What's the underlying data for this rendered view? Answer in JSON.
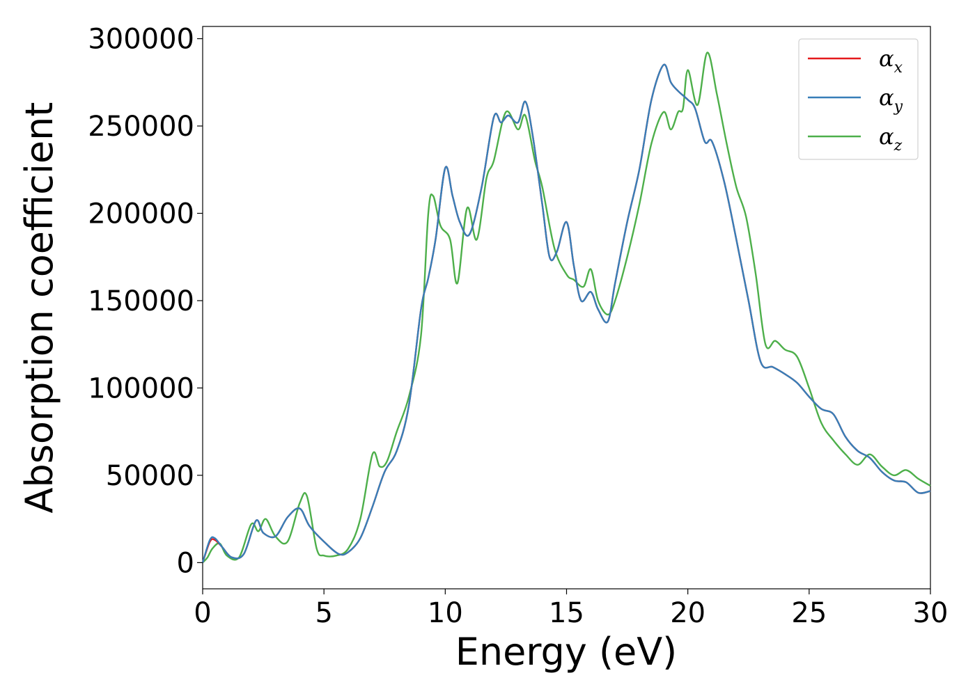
{
  "chart_data": {
    "type": "line",
    "title": "",
    "xlabel": "Energy (eV)",
    "ylabel": "Absorption coefficient",
    "xlim": [
      0,
      30
    ],
    "ylim": [
      -15000,
      307000
    ],
    "xticks": [
      0,
      5,
      10,
      15,
      20,
      25,
      30
    ],
    "xtick_labels": [
      "0",
      "5",
      "10",
      "15",
      "20",
      "25",
      "30"
    ],
    "yticks": [
      0,
      50000,
      100000,
      150000,
      200000,
      250000,
      300000
    ],
    "ytick_labels": [
      "0",
      "50000",
      "100000",
      "150000",
      "200000",
      "250000",
      "300000"
    ],
    "grid": false,
    "legend_position": "top-right",
    "series": [
      {
        "name": "α_x",
        "legend_base": "α",
        "legend_sub": "x",
        "color": "#e41a1c",
        "x": [
          0,
          0.3,
          0.5,
          0.8,
          1.2,
          1.7,
          2.2,
          2.5,
          3.0,
          3.5,
          4.0,
          4.4,
          5.0,
          5.6,
          6.0,
          6.5,
          7.0,
          7.5,
          8.0,
          8.5,
          9.0,
          9.3,
          9.6,
          10.0,
          10.3,
          10.6,
          11.0,
          11.5,
          12.0,
          12.3,
          12.6,
          13.0,
          13.3,
          13.6,
          14.0,
          14.3,
          14.6,
          15.0,
          15.3,
          15.6,
          16.0,
          16.3,
          16.7,
          17.0,
          17.5,
          18.0,
          18.5,
          19.0,
          19.3,
          19.6,
          20.0,
          20.3,
          20.7,
          21.0,
          21.5,
          22.0,
          22.5,
          23.0,
          23.5,
          24.0,
          24.5,
          25.0,
          25.5,
          26.0,
          26.5,
          27.0,
          27.5,
          28.0,
          28.5,
          29.0,
          29.5,
          30.0
        ],
        "y": [
          0,
          12000,
          13000,
          9000,
          3000,
          5000,
          24000,
          17000,
          15000,
          26000,
          31000,
          21000,
          12000,
          5000,
          6000,
          14000,
          32000,
          52000,
          64000,
          90000,
          145000,
          163000,
          185000,
          226000,
          210000,
          195000,
          188000,
          215000,
          255000,
          252000,
          256000,
          252000,
          264000,
          245000,
          205000,
          175000,
          178000,
          195000,
          170000,
          150000,
          155000,
          145000,
          138000,
          160000,
          195000,
          225000,
          265000,
          285000,
          275000,
          270000,
          265000,
          260000,
          241000,
          241000,
          218000,
          185000,
          150000,
          115000,
          112000,
          108000,
          103000,
          95000,
          88000,
          85000,
          72000,
          64000,
          60000,
          52000,
          47000,
          46000,
          40000,
          41000
        ]
      },
      {
        "name": "α_y",
        "legend_base": "α",
        "legend_sub": "y",
        "color": "#377eb8",
        "x": [
          0,
          0.3,
          0.5,
          0.8,
          1.2,
          1.7,
          2.2,
          2.5,
          3.0,
          3.5,
          4.0,
          4.4,
          5.0,
          5.6,
          6.0,
          6.5,
          7.0,
          7.5,
          8.0,
          8.5,
          9.0,
          9.3,
          9.6,
          10.0,
          10.3,
          10.6,
          11.0,
          11.5,
          12.0,
          12.3,
          12.6,
          13.0,
          13.3,
          13.6,
          14.0,
          14.3,
          14.6,
          15.0,
          15.3,
          15.6,
          16.0,
          16.3,
          16.7,
          17.0,
          17.5,
          18.0,
          18.5,
          19.0,
          19.3,
          19.6,
          20.0,
          20.3,
          20.7,
          21.0,
          21.5,
          22.0,
          22.5,
          23.0,
          23.5,
          24.0,
          24.5,
          25.0,
          25.5,
          26.0,
          26.5,
          27.0,
          27.5,
          28.0,
          28.5,
          29.0,
          29.5,
          30.0
        ],
        "y": [
          0,
          13000,
          14000,
          9000,
          3000,
          5000,
          24000,
          17000,
          15000,
          26000,
          31000,
          21000,
          12000,
          5000,
          6000,
          14000,
          32000,
          52000,
          64000,
          90000,
          145000,
          163000,
          185000,
          226000,
          210000,
          195000,
          188000,
          215000,
          255000,
          252000,
          256000,
          252000,
          264000,
          245000,
          205000,
          175000,
          178000,
          195000,
          170000,
          150000,
          155000,
          145000,
          138000,
          160000,
          195000,
          225000,
          265000,
          285000,
          275000,
          270000,
          265000,
          260000,
          241000,
          241000,
          218000,
          185000,
          150000,
          115000,
          112000,
          108000,
          103000,
          95000,
          88000,
          85000,
          72000,
          64000,
          60000,
          52000,
          47000,
          46000,
          40000,
          41000
        ]
      },
      {
        "name": "α_z",
        "legend_base": "α",
        "legend_sub": "z",
        "color": "#4daf4a",
        "x": [
          0,
          0.2,
          0.4,
          0.7,
          1.0,
          1.5,
          2.0,
          2.3,
          2.6,
          3.0,
          3.5,
          4.0,
          4.3,
          4.7,
          5.0,
          5.5,
          6.0,
          6.5,
          7.0,
          7.3,
          7.6,
          8.0,
          8.5,
          9.0,
          9.3,
          9.5,
          9.8,
          10.2,
          10.5,
          10.9,
          11.3,
          11.7,
          12.0,
          12.5,
          13.0,
          13.3,
          13.7,
          14.0,
          14.5,
          15.0,
          15.3,
          15.7,
          16.0,
          16.3,
          16.7,
          17.0,
          17.5,
          18.0,
          18.5,
          19.0,
          19.3,
          19.6,
          19.8,
          20.0,
          20.4,
          20.8,
          21.2,
          21.6,
          22.0,
          22.4,
          22.8,
          23.2,
          23.6,
          24.0,
          24.5,
          25.0,
          25.5,
          26.0,
          26.5,
          27.0,
          27.5,
          28.0,
          28.5,
          29.0,
          29.5,
          30.0
        ],
        "y": [
          0,
          3000,
          8000,
          11000,
          4000,
          3000,
          22000,
          18000,
          25000,
          15000,
          12000,
          34000,
          38000,
          8000,
          4000,
          4000,
          8000,
          25000,
          62000,
          55000,
          58000,
          75000,
          95000,
          130000,
          200000,
          210000,
          193000,
          185000,
          160000,
          203000,
          185000,
          220000,
          230000,
          258000,
          248000,
          256000,
          230000,
          215000,
          180000,
          165000,
          162000,
          158000,
          168000,
          150000,
          142000,
          150000,
          175000,
          205000,
          240000,
          258000,
          248000,
          258000,
          260000,
          282000,
          262000,
          292000,
          268000,
          240000,
          215000,
          198000,
          165000,
          125000,
          127000,
          122000,
          118000,
          100000,
          80000,
          70000,
          62000,
          56000,
          62000,
          55000,
          50000,
          53000,
          48000,
          44000
        ]
      }
    ]
  }
}
